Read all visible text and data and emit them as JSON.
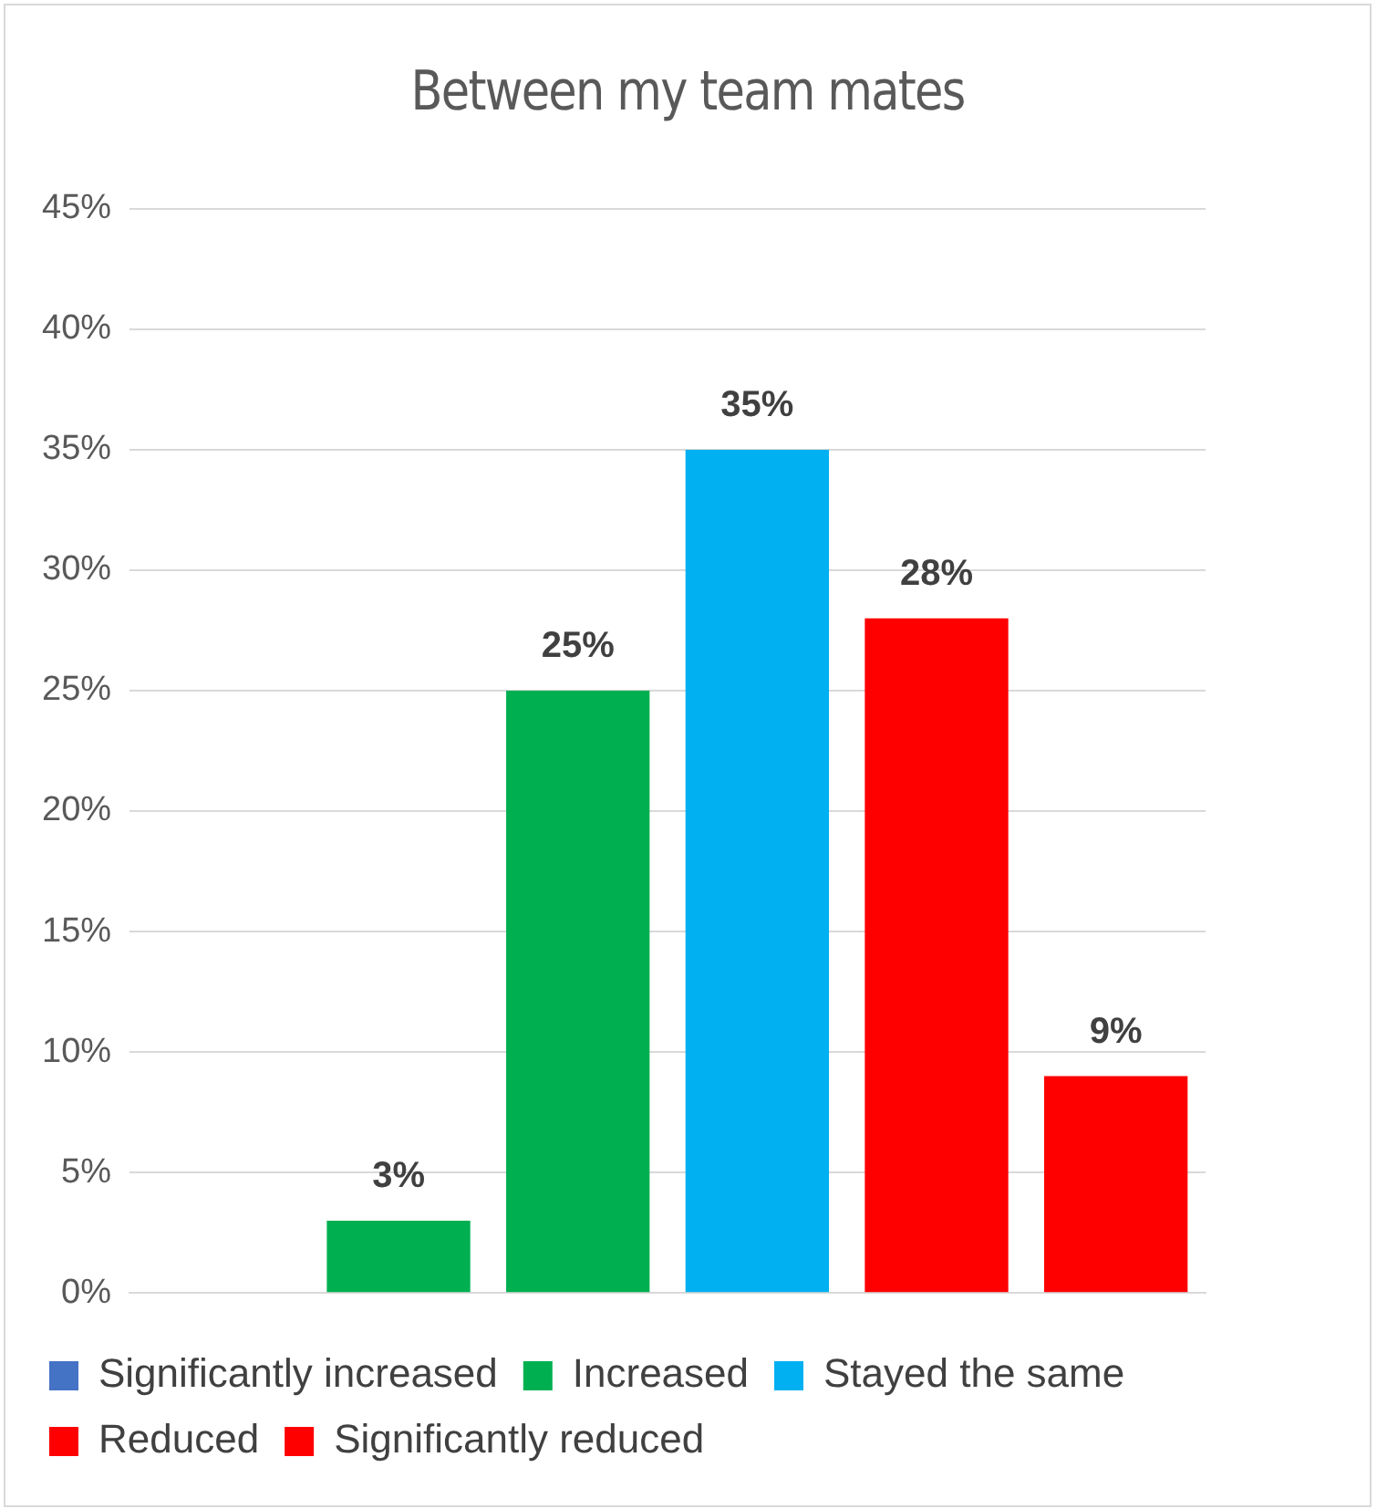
{
  "chart_data": {
    "type": "bar",
    "title": "Between my team mates",
    "categories": [
      null,
      null,
      null,
      null,
      null,
      null
    ],
    "stacked": true,
    "series": [
      {
        "name": "Significantly increased",
        "color": "#4472c4",
        "values": [
          null,
          null,
          null,
          null,
          null,
          null
        ]
      },
      {
        "name": "Increased",
        "color": "#00b050",
        "values": [
          null,
          3,
          25,
          null,
          null,
          null
        ],
        "value_labels": [
          null,
          "3%",
          "25%",
          null,
          null,
          null
        ]
      },
      {
        "name": "Stayed the same",
        "color": "#00b0f0",
        "values": [
          null,
          null,
          null,
          35,
          null,
          null
        ],
        "value_labels": [
          null,
          null,
          null,
          "35%",
          null,
          null
        ]
      },
      {
        "name": "Reduced",
        "color": "#ff0000",
        "values": [
          null,
          null,
          null,
          null,
          28,
          null
        ],
        "value_labels": [
          null,
          null,
          null,
          null,
          "28%",
          null
        ]
      },
      {
        "name": "Significantly reduced",
        "color": "#ff0000",
        "values": [
          null,
          null,
          null,
          null,
          null,
          9
        ],
        "value_labels": [
          null,
          null,
          null,
          null,
          null,
          "9%"
        ]
      }
    ],
    "ylim": [
      0,
      45
    ],
    "yticks": [
      {
        "value": 0,
        "label": "0%"
      },
      {
        "value": 5,
        "label": "5%"
      },
      {
        "value": 10,
        "label": "10%"
      },
      {
        "value": 15,
        "label": "15%"
      },
      {
        "value": 20,
        "label": "20%"
      },
      {
        "value": 25,
        "label": "25%"
      },
      {
        "value": 30,
        "label": "30%"
      },
      {
        "value": 35,
        "label": "35%"
      },
      {
        "value": 40,
        "label": "40%"
      },
      {
        "value": 45,
        "label": "45%"
      }
    ],
    "grid": "y",
    "legend": "bottom"
  }
}
